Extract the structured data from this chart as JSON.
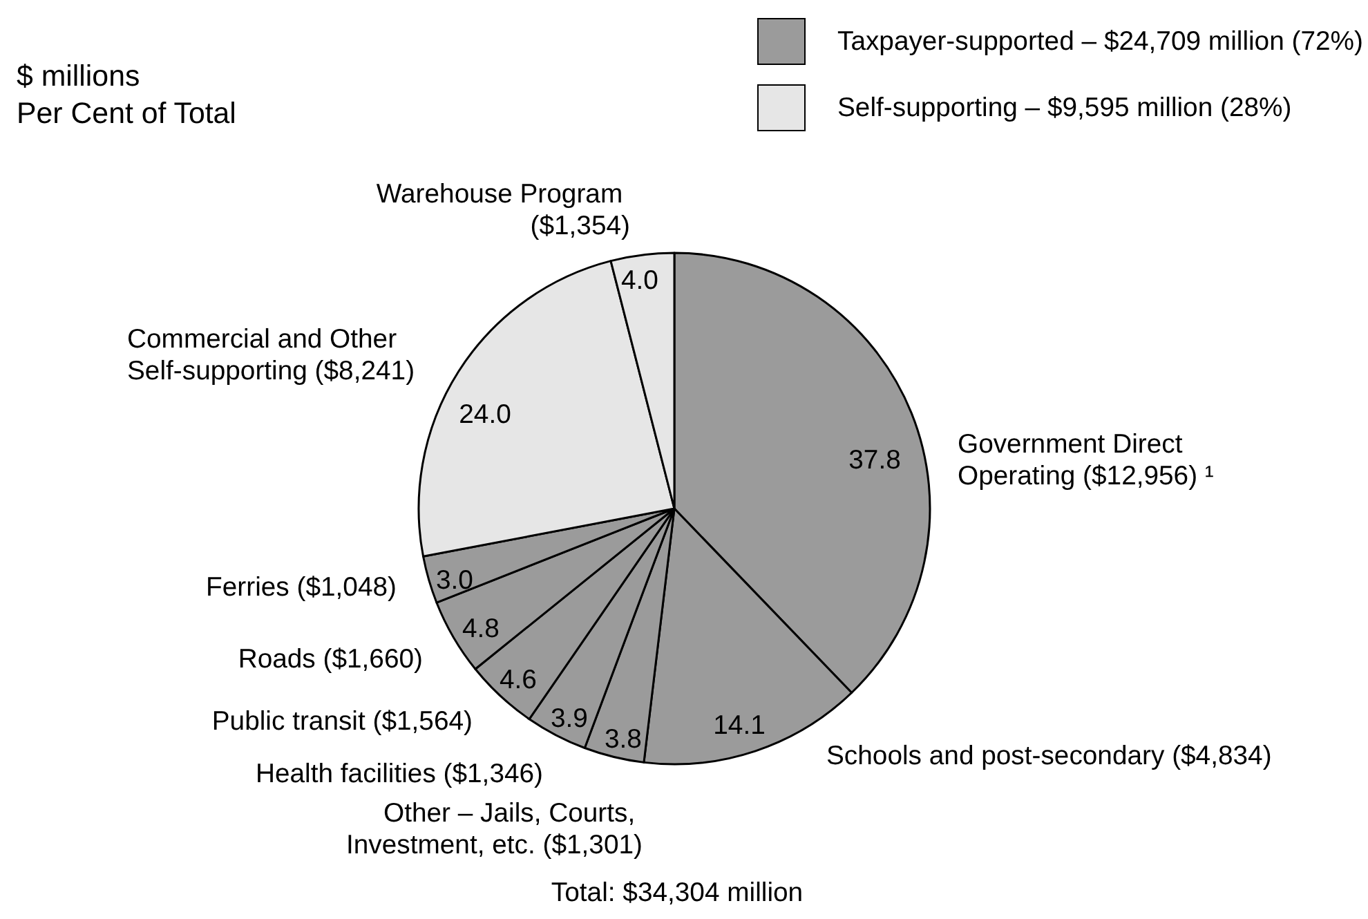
{
  "chart_data": {
    "type": "pie",
    "categories": [
      "Government Direct Operating ($12,956) ¹",
      "Schools and post-secondary ($4,834)",
      "Other – Jails, Courts, Investment, etc. ($1,301)",
      "Health facilities ($1,346)",
      "Public transit ($1,564)",
      "Roads ($1,660)",
      "Ferries ($1,048)",
      "Commercial and Other Self-supporting ($8,241)",
      "Warehouse Program ($1,354)"
    ],
    "values": [
      37.8,
      14.1,
      3.8,
      3.9,
      4.6,
      4.8,
      3.0,
      24.0,
      4.0
    ],
    "value_labels": [
      "37.8",
      "14.1",
      "3.8",
      "3.9",
      "4.6",
      "4.8",
      "3.0",
      "24.0",
      "4.0"
    ],
    "colors": [
      "#9b9b9b",
      "#9b9b9b",
      "#9b9b9b",
      "#9b9b9b",
      "#9b9b9b",
      "#9b9b9b",
      "#9b9b9b",
      "#e6e6e6",
      "#e6e6e6"
    ],
    "annotations": [
      "Taxpayer-supported – $24,709 million (72%)",
      "Self-supporting – $9,595 million (28%)",
      "$ millions",
      "Per Cent of Total",
      "Total: $34,304 million"
    ]
  }
}
